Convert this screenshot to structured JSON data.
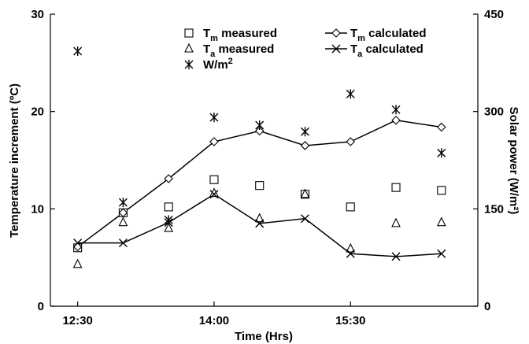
{
  "chart_data": {
    "type": "scatter",
    "title": "",
    "xlabel": "Time (Hrs)",
    "ylabel_left": "Temperature increment (ºC)",
    "ylabel_right": "Solar power (W/m²)",
    "x_tick_labels": [
      "12:30",
      "14:00",
      "15:30"
    ],
    "x_tick_values": [
      0,
      3,
      6
    ],
    "xlim": [
      -0.6,
      8.8
    ],
    "y_left_ticks": [
      "0",
      "10",
      "20",
      "30"
    ],
    "y_left_lim": [
      0,
      30
    ],
    "y_right_ticks": [
      "0",
      "150",
      "300",
      "450"
    ],
    "y_right_lim": [
      0,
      450
    ],
    "grid": false,
    "legend_position": "top-right",
    "x": [
      0,
      1,
      2,
      3,
      4,
      5,
      6,
      7,
      8
    ],
    "series": [
      {
        "name": "Tm measured",
        "label_main": "T",
        "label_sub": "m",
        "label_rest": " measured",
        "marker": "square",
        "line": false,
        "axis": "left",
        "values": [
          6.0,
          9.6,
          10.2,
          13.0,
          12.4,
          11.5,
          10.2,
          12.2,
          11.9
        ]
      },
      {
        "name": "Tm calculated",
        "label_main": "T",
        "label_sub": "m",
        "label_rest": " calculated",
        "marker": "diamond",
        "line": true,
        "axis": "left",
        "values": [
          6.1,
          9.6,
          13.1,
          16.9,
          18.0,
          16.5,
          16.9,
          19.1,
          18.4
        ]
      },
      {
        "name": "Ta measured",
        "label_main": "T",
        "label_sub": "a",
        "label_rest": " measured",
        "marker": "triangle",
        "line": false,
        "axis": "left",
        "values": [
          4.3,
          8.6,
          8.0,
          11.6,
          9.0,
          11.5,
          5.9,
          8.5,
          8.6
        ]
      },
      {
        "name": "Ta calculated",
        "label_main": "T",
        "label_sub": "a",
        "label_rest": " calculated",
        "marker": "x",
        "line": true,
        "axis": "left",
        "values": [
          6.5,
          6.5,
          8.6,
          11.5,
          8.5,
          9.0,
          5.4,
          5.1,
          5.4
        ]
      },
      {
        "name": "W/m2",
        "label_main": "W/m",
        "label_sup": "2",
        "marker": "asterisk",
        "line": false,
        "axis": "right",
        "values": [
          393,
          160,
          133,
          291,
          279,
          269,
          327,
          303,
          236
        ]
      }
    ]
  }
}
